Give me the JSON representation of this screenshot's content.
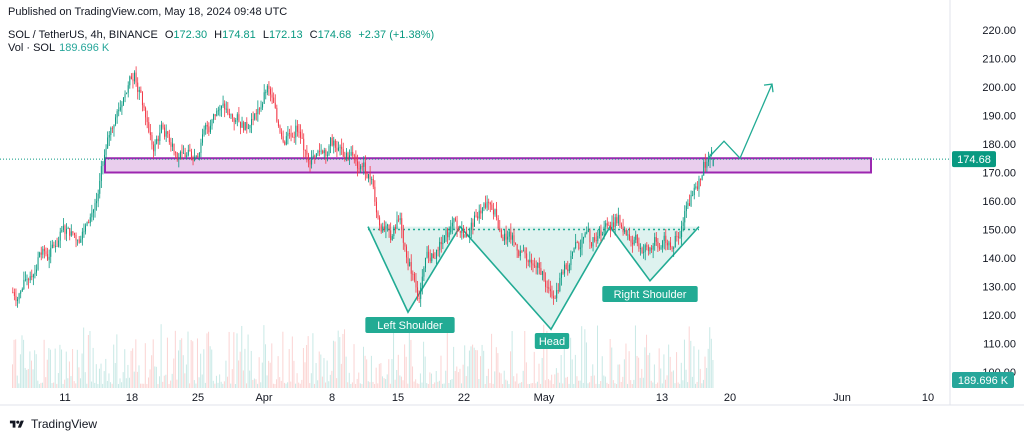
{
  "published": "Published on TradingView.com, May 18, 2024 09:48 UTC",
  "legend": {
    "symbol": "SOL / TetherUS, 4h, BINANCE",
    "o_label": "O",
    "o": "172.30",
    "h_label": "H",
    "h": "174.81",
    "l_label": "L",
    "l": "172.13",
    "c_label": "C",
    "c": "174.68",
    "change": "+2.37 (+1.38%)"
  },
  "volume": {
    "label": "Vol · SOL",
    "value": "189.696 K"
  },
  "footer": {
    "brand": "TradingView"
  },
  "colors": {
    "up": "#089981",
    "down": "#f23645",
    "zone_fill": "#e1bee7",
    "zone_border": "#9c27b0",
    "pattern": "#22ab94"
  },
  "chart_data": {
    "type": "candlestick",
    "symbol": "SOL / TetherUS",
    "interval": "4h",
    "y_ticks": [
      "220.00",
      "210.00",
      "200.00",
      "190.00",
      "180.00",
      "170.00",
      "160.00",
      "150.00",
      "140.00",
      "130.00",
      "120.00",
      "110.00",
      "100.00"
    ],
    "ylim": [
      100,
      220
    ],
    "x_ticks": [
      "11",
      "18",
      "25",
      "Apr",
      "8",
      "15",
      "22",
      "May",
      "13",
      "20",
      "Jun",
      "10"
    ],
    "last_price": "174.68",
    "last_volume": "189.696 K",
    "resistance_zone": [
      170,
      175
    ],
    "neckline": 150,
    "pattern_labels": [
      "Left Shoulder",
      "Head",
      "Right Shoulder"
    ],
    "pattern_points": {
      "left_shoulder": 121,
      "head": 115,
      "right_shoulder": 132,
      "neck_tops": [
        151,
        151,
        151,
        151
      ]
    },
    "projection": [
      175,
      181,
      175,
      201
    ],
    "series": [
      {
        "date": "Mar 06",
        "close": 128
      },
      {
        "date": "Mar 07",
        "close": 134
      },
      {
        "date": "Mar 08",
        "close": 142
      },
      {
        "date": "Mar 09",
        "close": 140
      },
      {
        "date": "Mar 10",
        "close": 146
      },
      {
        "date": "Mar 11",
        "close": 150
      },
      {
        "date": "Mar 12",
        "close": 147
      },
      {
        "date": "Mar 13",
        "close": 152
      },
      {
        "date": "Mar 14",
        "close": 160
      },
      {
        "date": "Mar 15",
        "close": 178
      },
      {
        "date": "Mar 16",
        "close": 190
      },
      {
        "date": "Mar 17",
        "close": 198
      },
      {
        "date": "Mar 18",
        "close": 205
      },
      {
        "date": "Mar 19",
        "close": 192
      },
      {
        "date": "Mar 20",
        "close": 178
      },
      {
        "date": "Mar 21",
        "close": 186
      },
      {
        "date": "Mar 22",
        "close": 180
      },
      {
        "date": "Mar 23",
        "close": 176
      },
      {
        "date": "Mar 24",
        "close": 175
      },
      {
        "date": "Mar 25",
        "close": 180
      },
      {
        "date": "Mar 26",
        "close": 186
      },
      {
        "date": "Mar 27",
        "close": 192
      },
      {
        "date": "Mar 28",
        "close": 190
      },
      {
        "date": "Mar 29",
        "close": 188
      },
      {
        "date": "Mar 30",
        "close": 186
      },
      {
        "date": "Mar 31",
        "close": 192
      },
      {
        "date": "Apr 01",
        "close": 200
      },
      {
        "date": "Apr 02",
        "close": 188
      },
      {
        "date": "Apr 03",
        "close": 183
      },
      {
        "date": "Apr 04",
        "close": 186
      },
      {
        "date": "Apr 05",
        "close": 178
      },
      {
        "date": "Apr 06",
        "close": 176
      },
      {
        "date": "Apr 07",
        "close": 178
      },
      {
        "date": "Apr 08",
        "close": 181
      },
      {
        "date": "Apr 09",
        "close": 176
      },
      {
        "date": "Apr 10",
        "close": 176
      },
      {
        "date": "Apr 11",
        "close": 172
      },
      {
        "date": "Apr 12",
        "close": 168
      },
      {
        "date": "Apr 13",
        "close": 150
      },
      {
        "date": "Apr 14",
        "close": 146
      },
      {
        "date": "Apr 15",
        "close": 154
      },
      {
        "date": "Apr 16",
        "close": 138
      },
      {
        "date": "Apr 17",
        "close": 126
      },
      {
        "date": "Apr 18",
        "close": 140
      },
      {
        "date": "Apr 19",
        "close": 142
      },
      {
        "date": "Apr 20",
        "close": 148
      },
      {
        "date": "Apr 21",
        "close": 150
      },
      {
        "date": "Apr 22",
        "close": 148
      },
      {
        "date": "Apr 23",
        "close": 154
      },
      {
        "date": "Apr 24",
        "close": 158
      },
      {
        "date": "Apr 25",
        "close": 157
      },
      {
        "date": "Apr 26",
        "close": 148
      },
      {
        "date": "Apr 27",
        "close": 145
      },
      {
        "date": "Apr 28",
        "close": 142
      },
      {
        "date": "Apr 29",
        "close": 137
      },
      {
        "date": "Apr 30",
        "close": 135
      },
      {
        "date": "May 01",
        "close": 127
      },
      {
        "date": "May 02",
        "close": 135
      },
      {
        "date": "May 03",
        "close": 141
      },
      {
        "date": "May 04",
        "close": 144
      },
      {
        "date": "May 05",
        "close": 146
      },
      {
        "date": "May 06",
        "close": 150
      },
      {
        "date": "May 07",
        "close": 152
      },
      {
        "date": "May 08",
        "close": 155
      },
      {
        "date": "May 09",
        "close": 148
      },
      {
        "date": "May 10",
        "close": 145
      },
      {
        "date": "May 11",
        "close": 144
      },
      {
        "date": "May 12",
        "close": 146
      },
      {
        "date": "May 13",
        "close": 145
      },
      {
        "date": "May 14",
        "close": 147
      },
      {
        "date": "May 15",
        "close": 157
      },
      {
        "date": "May 16",
        "close": 165
      },
      {
        "date": "May 17",
        "close": 173
      },
      {
        "date": "May 18",
        "close": 174.68
      }
    ]
  }
}
